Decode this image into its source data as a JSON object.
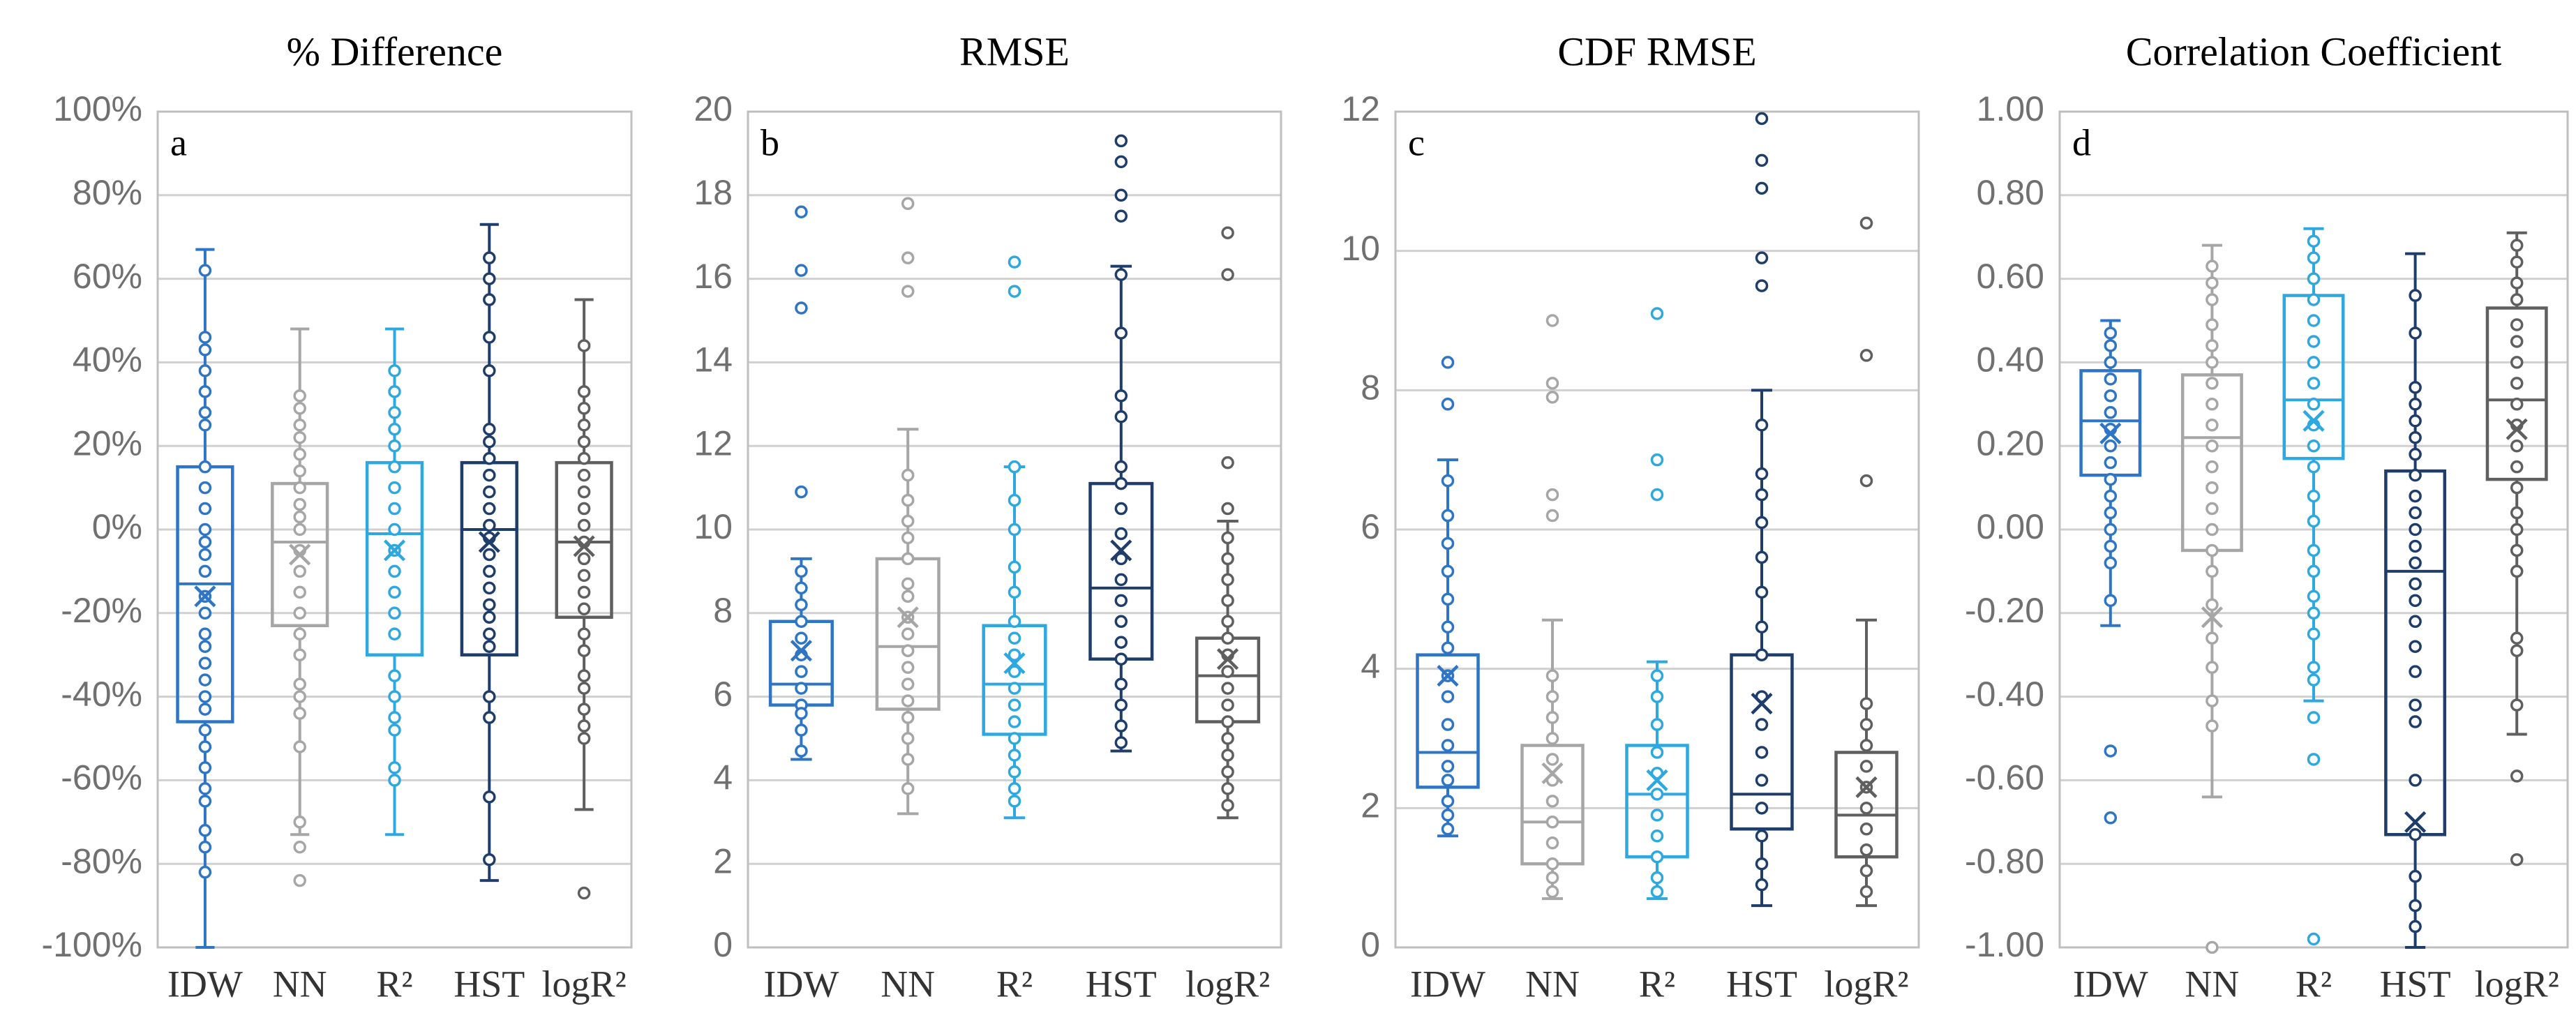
{
  "chart_data": [
    {
      "type": "box",
      "title": "% Difference",
      "annotation": "a",
      "categories": [
        "IDW",
        "NN",
        "R²",
        "HST",
        "logR²"
      ],
      "colors": [
        "#2e75c6",
        "#a6a6a6",
        "#2ea8e0",
        "#1f3d6b",
        "#5f5f5f"
      ],
      "ylim": [
        -100,
        100
      ],
      "yticks": [
        {
          "value": -100,
          "label": "-100%"
        },
        {
          "value": -80,
          "label": "-80%"
        },
        {
          "value": -60,
          "label": "-60%"
        },
        {
          "value": -40,
          "label": "-40%"
        },
        {
          "value": -20,
          "label": "-20%"
        },
        {
          "value": 0,
          "label": "0%"
        },
        {
          "value": 20,
          "label": "20%"
        },
        {
          "value": 40,
          "label": "40%"
        },
        {
          "value": 60,
          "label": "60%"
        },
        {
          "value": 80,
          "label": "80%"
        },
        {
          "value": 100,
          "label": "100%"
        }
      ],
      "grid": true,
      "boxes": [
        {
          "min": -100,
          "q1": -46,
          "median": -13,
          "q3": 15,
          "max": 67,
          "mean": -16,
          "points": [
            62,
            46,
            43,
            38,
            33,
            28,
            25,
            15,
            10,
            5,
            0,
            -3,
            -6,
            -10,
            -16,
            -20,
            -25,
            -28,
            -32,
            -36,
            -40,
            -43,
            -48,
            -52,
            -57,
            -62,
            -65,
            -72,
            -76,
            -82
          ]
        },
        {
          "min": -73,
          "q1": -23,
          "median": -3,
          "q3": 11,
          "max": 48,
          "mean": -6,
          "points": [
            32,
            29,
            25,
            22,
            18,
            14,
            10,
            6,
            3,
            0,
            -5,
            -10,
            -15,
            -20,
            -25,
            -30,
            -37,
            -40,
            -44,
            -52,
            -70,
            -76,
            -84
          ]
        },
        {
          "min": -73,
          "q1": -30,
          "median": -1,
          "q3": 16,
          "max": 48,
          "mean": -5,
          "points": [
            38,
            33,
            28,
            24,
            20,
            15,
            10,
            5,
            0,
            -5,
            -10,
            -15,
            -20,
            -25,
            -35,
            -40,
            -45,
            -48,
            -57,
            -60
          ]
        },
        {
          "min": -84,
          "q1": -30,
          "median": 0,
          "q3": 16,
          "max": 73,
          "mean": -3,
          "points": [
            65,
            60,
            55,
            46,
            38,
            24,
            21,
            17,
            13,
            9,
            5,
            1,
            -2,
            -6,
            -10,
            -14,
            -18,
            -21,
            -25,
            -28,
            -40,
            -45,
            -64,
            -79
          ]
        },
        {
          "min": -67,
          "q1": -21,
          "median": -3,
          "q3": 16,
          "max": 55,
          "mean": -4,
          "points": [
            44,
            33,
            29,
            25,
            21,
            17,
            13,
            9,
            5,
            1,
            -3,
            -7,
            -11,
            -15,
            -19,
            -25,
            -29,
            -35,
            -38,
            -43,
            -47,
            -50,
            -87
          ]
        }
      ]
    },
    {
      "type": "box",
      "title": "RMSE",
      "annotation": "b",
      "categories": [
        "IDW",
        "NN",
        "R²",
        "HST",
        "logR²"
      ],
      "colors": [
        "#2e75c6",
        "#a6a6a6",
        "#2ea8e0",
        "#1f3d6b",
        "#5f5f5f"
      ],
      "ylim": [
        0,
        20
      ],
      "yticks": [
        0,
        2,
        4,
        6,
        8,
        10,
        12,
        14,
        16,
        18,
        20
      ],
      "grid": true,
      "boxes": [
        {
          "min": 4.5,
          "q1": 5.8,
          "median": 6.3,
          "q3": 7.8,
          "max": 9.3,
          "mean": 7.1,
          "points": [
            17.6,
            16.2,
            15.3,
            10.9,
            9.0,
            8.6,
            8.2,
            7.8,
            7.4,
            7.0,
            6.6,
            6.2,
            5.8,
            5.6,
            5.2,
            4.7
          ]
        },
        {
          "min": 3.2,
          "q1": 5.7,
          "median": 7.2,
          "q3": 9.3,
          "max": 12.4,
          "mean": 7.9,
          "points": [
            17.8,
            16.5,
            15.7,
            11.3,
            10.7,
            10.2,
            9.8,
            9.3,
            8.7,
            8.4,
            7.9,
            7.5,
            7.1,
            6.7,
            6.3,
            5.9,
            5.5,
            5.0,
            4.5,
            3.8
          ]
        },
        {
          "min": 3.1,
          "q1": 5.1,
          "median": 6.3,
          "q3": 7.7,
          "max": 11.5,
          "mean": 6.8,
          "points": [
            16.4,
            15.7,
            11.5,
            10.7,
            10.0,
            9.1,
            8.5,
            7.8,
            7.4,
            7.0,
            6.6,
            6.2,
            5.8,
            5.4,
            5.0,
            4.6,
            4.2,
            3.8,
            3.5
          ]
        },
        {
          "min": 4.7,
          "q1": 6.9,
          "median": 8.6,
          "q3": 11.1,
          "max": 16.3,
          "mean": 9.5,
          "points": [
            19.3,
            18.8,
            18.0,
            17.5,
            16.1,
            14.7,
            13.2,
            12.7,
            11.5,
            11.1,
            10.5,
            9.9,
            9.3,
            8.8,
            8.3,
            7.8,
            7.3,
            6.9,
            6.3,
            5.8,
            5.3,
            4.9
          ]
        },
        {
          "min": 3.1,
          "q1": 5.4,
          "median": 6.5,
          "q3": 7.4,
          "max": 10.2,
          "mean": 6.9,
          "points": [
            17.1,
            16.1,
            11.6,
            10.5,
            9.8,
            9.3,
            8.8,
            8.3,
            7.8,
            7.4,
            7.0,
            6.6,
            6.2,
            5.8,
            5.4,
            5.0,
            4.6,
            4.2,
            3.8,
            3.4
          ]
        }
      ]
    },
    {
      "type": "box",
      "title": "CDF RMSE",
      "annotation": "c",
      "categories": [
        "IDW",
        "NN",
        "R²",
        "HST",
        "logR²"
      ],
      "colors": [
        "#2e75c6",
        "#a6a6a6",
        "#2ea8e0",
        "#1f3d6b",
        "#5f5f5f"
      ],
      "ylim": [
        0,
        12
      ],
      "yticks": [
        0,
        2,
        4,
        6,
        8,
        10,
        12
      ],
      "grid": true,
      "boxes": [
        {
          "min": 1.6,
          "q1": 2.3,
          "median": 2.8,
          "q3": 4.2,
          "max": 7.0,
          "mean": 3.9,
          "points": [
            8.4,
            7.8,
            6.7,
            6.2,
            5.8,
            5.4,
            5.0,
            4.6,
            4.3,
            3.9,
            3.6,
            3.2,
            2.9,
            2.6,
            2.4,
            2.1,
            1.9,
            1.7
          ]
        },
        {
          "min": 0.7,
          "q1": 1.2,
          "median": 1.8,
          "q3": 2.9,
          "max": 4.7,
          "mean": 2.5,
          "points": [
            9.0,
            8.1,
            7.9,
            6.5,
            6.2,
            3.9,
            3.6,
            3.3,
            3.0,
            2.7,
            2.4,
            2.1,
            1.8,
            1.5,
            1.2,
            1.0,
            0.8
          ]
        },
        {
          "min": 0.7,
          "q1": 1.3,
          "median": 2.2,
          "q3": 2.9,
          "max": 4.1,
          "mean": 2.4,
          "points": [
            9.1,
            7.0,
            6.5,
            3.9,
            3.6,
            3.2,
            2.8,
            2.5,
            2.2,
            1.9,
            1.6,
            1.3,
            1.0,
            0.8
          ]
        },
        {
          "min": 0.6,
          "q1": 1.7,
          "median": 2.2,
          "q3": 4.2,
          "max": 8.0,
          "mean": 3.5,
          "points": [
            11.9,
            11.3,
            10.9,
            9.9,
            9.5,
            7.5,
            6.8,
            6.5,
            6.1,
            5.6,
            5.1,
            4.6,
            4.2,
            3.6,
            3.2,
            2.8,
            2.4,
            2.0,
            1.6,
            1.2,
            0.9
          ]
        },
        {
          "min": 0.6,
          "q1": 1.3,
          "median": 1.9,
          "q3": 2.8,
          "max": 4.7,
          "mean": 2.3,
          "points": [
            10.4,
            8.5,
            6.7,
            3.5,
            3.2,
            2.9,
            2.6,
            2.3,
            2.0,
            1.7,
            1.4,
            1.1,
            0.8
          ]
        }
      ]
    },
    {
      "type": "box",
      "title": "Correlation Coefficient",
      "annotation": "d",
      "categories": [
        "IDW",
        "NN",
        "R²",
        "HST",
        "logR²"
      ],
      "colors": [
        "#2e75c6",
        "#a6a6a6",
        "#2ea8e0",
        "#1f3d6b",
        "#5f5f5f"
      ],
      "ylim": [
        -1,
        1
      ],
      "yticks": [
        {
          "value": -1,
          "label": "-1.00"
        },
        {
          "value": -0.8,
          "label": "-0.80"
        },
        {
          "value": -0.6,
          "label": "-0.60"
        },
        {
          "value": -0.4,
          "label": "-0.40"
        },
        {
          "value": -0.2,
          "label": "-0.20"
        },
        {
          "value": 0,
          "label": "0.00"
        },
        {
          "value": 0.2,
          "label": "0.20"
        },
        {
          "value": 0.4,
          "label": "0.40"
        },
        {
          "value": 0.6,
          "label": "0.60"
        },
        {
          "value": 0.8,
          "label": "0.80"
        },
        {
          "value": 1,
          "label": "1.00"
        }
      ],
      "grid": true,
      "boxes": [
        {
          "min": -0.23,
          "q1": 0.13,
          "median": 0.26,
          "q3": 0.38,
          "max": 0.5,
          "mean": 0.23,
          "points": [
            0.47,
            0.44,
            0.4,
            0.36,
            0.32,
            0.28,
            0.24,
            0.2,
            0.16,
            0.12,
            0.08,
            0.04,
            0.0,
            -0.04,
            -0.08,
            -0.17,
            -0.53,
            -0.69
          ]
        },
        {
          "min": -0.64,
          "q1": -0.05,
          "median": 0.22,
          "q3": 0.37,
          "max": 0.68,
          "mean": -0.21,
          "points": [
            0.63,
            0.59,
            0.55,
            0.49,
            0.44,
            0.4,
            0.35,
            0.3,
            0.25,
            0.2,
            0.15,
            0.1,
            0.05,
            0.0,
            -0.05,
            -0.1,
            -0.18,
            -0.26,
            -0.33,
            -0.41,
            -0.47,
            -1.0
          ]
        },
        {
          "min": -0.41,
          "q1": 0.17,
          "median": 0.31,
          "q3": 0.56,
          "max": 0.72,
          "mean": 0.26,
          "points": [
            0.69,
            0.65,
            0.6,
            0.55,
            0.5,
            0.45,
            0.4,
            0.35,
            0.3,
            0.25,
            0.2,
            0.15,
            0.08,
            0.02,
            -0.05,
            -0.1,
            -0.16,
            -0.2,
            -0.25,
            -0.33,
            -0.36,
            -0.45,
            -0.55,
            -0.98
          ]
        },
        {
          "min": -1.0,
          "q1": -0.73,
          "median": -0.1,
          "q3": 0.14,
          "max": 0.66,
          "mean": -0.7,
          "points": [
            0.56,
            0.47,
            0.34,
            0.3,
            0.26,
            0.22,
            0.18,
            0.13,
            0.08,
            0.04,
            0.0,
            -0.04,
            -0.08,
            -0.13,
            -0.17,
            -0.22,
            -0.28,
            -0.34,
            -0.42,
            -0.46,
            -0.6,
            -0.73,
            -0.83,
            -0.9,
            -0.95
          ]
        },
        {
          "min": -0.49,
          "q1": 0.12,
          "median": 0.31,
          "q3": 0.53,
          "max": 0.71,
          "mean": 0.24,
          "points": [
            0.68,
            0.64,
            0.59,
            0.55,
            0.49,
            0.45,
            0.4,
            0.35,
            0.3,
            0.25,
            0.2,
            0.15,
            0.1,
            0.04,
            0.0,
            -0.05,
            -0.1,
            -0.26,
            -0.29,
            -0.42,
            -0.59,
            -0.79
          ]
        }
      ]
    }
  ]
}
